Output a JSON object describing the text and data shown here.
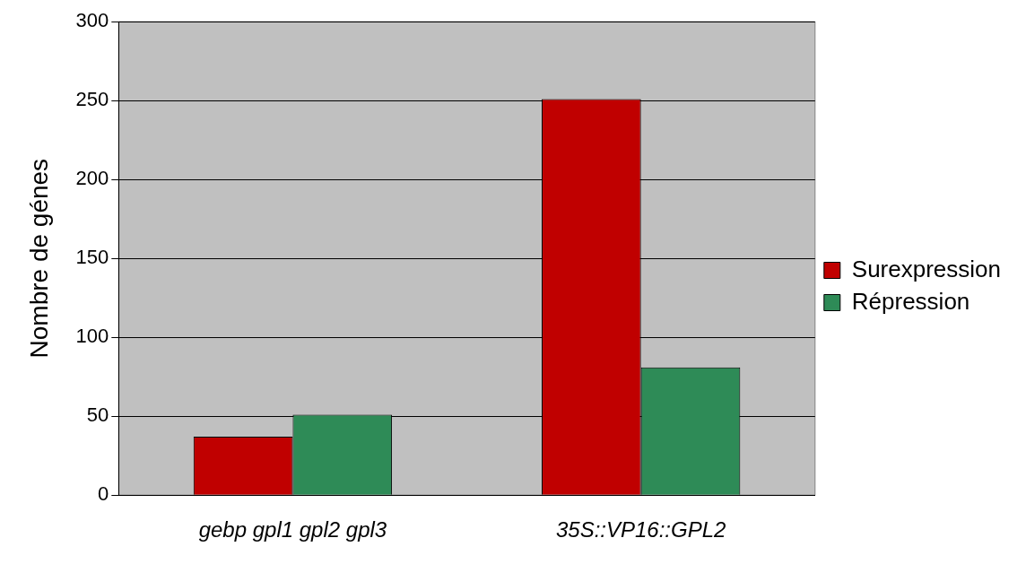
{
  "chart_data": {
    "type": "bar",
    "ylabel": "Nombre de génes",
    "categories": [
      "gebp gpl1 gpl2 gpl3",
      "35S::VP16::GPL2"
    ],
    "series": [
      {
        "name": "Surexpression",
        "color": "#c00000",
        "values": [
          37,
          251
        ]
      },
      {
        "name": "Répression",
        "color": "#2e8b57",
        "values": [
          51,
          81
        ]
      }
    ],
    "ylim": [
      0,
      300
    ],
    "yticks": [
      0,
      50,
      100,
      150,
      200,
      250,
      300
    ],
    "grid": "y",
    "legend": "right"
  }
}
